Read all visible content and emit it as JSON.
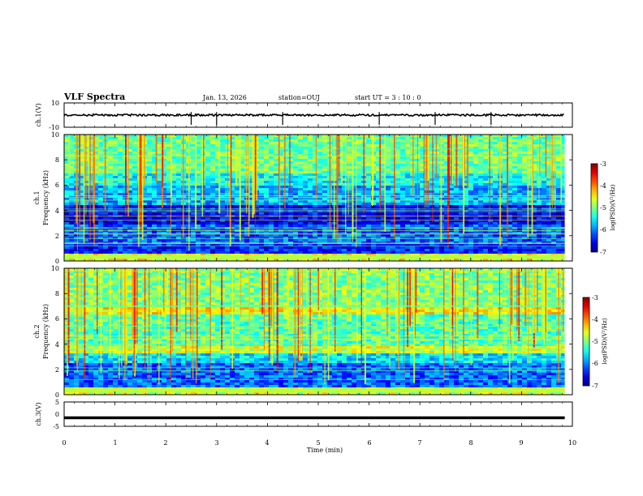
{
  "header": {
    "title": "VLF Spectra",
    "date": "Jan. 13, 2026",
    "station": "station=OUJ",
    "start": "start  UT  =   3  : 10 : 0"
  },
  "colors": {
    "axis": "#000000",
    "background": "#ffffff"
  },
  "chart_data": [
    {
      "type": "line",
      "name": "ch1-waveform",
      "ylabel": "ch.1(V)",
      "ylim": [
        -10,
        10
      ],
      "yticks": [
        "10",
        "-10"
      ],
      "baseline": 0,
      "spikes_min": [
        2.5,
        3.0,
        4.3,
        6.2,
        7.3,
        8.4
      ]
    },
    {
      "type": "heatmap",
      "name": "ch1-spectrogram",
      "ylabel_line1": "ch.1",
      "ylabel_line2": "Frequency (kHz)",
      "ylim": [
        0,
        10
      ],
      "yticks": [
        "0",
        "2",
        "4",
        "6",
        "8",
        "10"
      ],
      "colorbar": {
        "label": "log(PSD)(V²/Hz)",
        "range": [
          -7,
          -3
        ],
        "ticks": [
          "-3",
          "-4",
          "-5",
          "-6",
          "-7"
        ]
      }
    },
    {
      "type": "heatmap",
      "name": "ch2-spectrogram",
      "ylabel_line1": "ch.2",
      "ylabel_line2": "Frequency (kHz)",
      "ylim": [
        0,
        10
      ],
      "yticks": [
        "0",
        "2",
        "4",
        "6",
        "8",
        "10"
      ],
      "colorbar": {
        "label": "log(PSD)(V²/Hz)",
        "range": [
          -7,
          -3
        ],
        "ticks": [
          "-3",
          "-4",
          "-5",
          "-6",
          "-7"
        ]
      }
    },
    {
      "type": "line",
      "name": "ch3-waveform",
      "ylabel": "ch.3(V)",
      "ylim": [
        -5,
        5
      ],
      "yticks": [
        "5",
        "0",
        "-5"
      ],
      "baseline": -1.5
    }
  ],
  "xaxis": {
    "label": "Time (min)",
    "xlim": [
      0,
      10
    ],
    "ticks": [
      "0",
      "1",
      "2",
      "3",
      "4",
      "5",
      "6",
      "7",
      "8",
      "9",
      "10"
    ],
    "data_end_min": 9.85
  }
}
